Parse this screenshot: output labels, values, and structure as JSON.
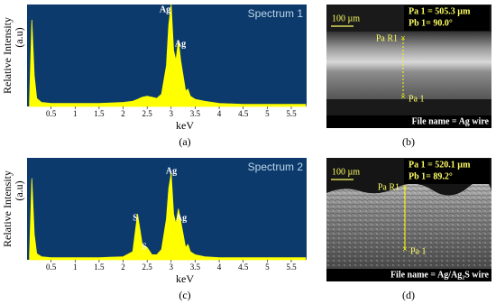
{
  "chart_data": [
    {
      "type": "area",
      "title": "Spectrum 1",
      "ylabel": "Relative Intensity",
      "ylabel_unit": "(a.u)",
      "xlabel": "keV",
      "caption": "(a)",
      "x": [
        0.05,
        0.1,
        0.15,
        0.2,
        0.3,
        0.5,
        1,
        1.5,
        2,
        2.2,
        2.3,
        2.4,
        2.5,
        2.6,
        2.7,
        2.8,
        2.9,
        2.95,
        3.0,
        3.05,
        3.1,
        3.15,
        3.2,
        3.3,
        3.35,
        3.4,
        3.5,
        3.7,
        4,
        4.5,
        5,
        5.5,
        5.8
      ],
      "series": [
        {
          "color": "#ffff00",
          "values": [
            5,
            85,
            30,
            8,
            4,
            3,
            3,
            3,
            4,
            5,
            7,
            9,
            10,
            9,
            8,
            12,
            40,
            80,
            100,
            55,
            45,
            65,
            45,
            15,
            17,
            10,
            7,
            5,
            3,
            2,
            2,
            2,
            2
          ]
        }
      ],
      "xlim": [
        0,
        5.82
      ],
      "ylim": [
        0,
        100
      ],
      "xticks": [
        0.5,
        1,
        1.5,
        2,
        2.5,
        3,
        3.5,
        4,
        4.5,
        5,
        5.5
      ],
      "background": "#0d3a6c",
      "annotations": [
        "Ag",
        "Ag"
      ]
    },
    {
      "type": "area",
      "title": "Spectrum 2",
      "ylabel": "Relative Intensity",
      "ylabel_unit": "(a.u)",
      "xlabel": "keV",
      "caption": "(c)",
      "x": [
        0.05,
        0.1,
        0.15,
        0.2,
        0.3,
        0.5,
        1,
        1.5,
        2,
        2.2,
        2.3,
        2.4,
        2.5,
        2.6,
        2.7,
        2.8,
        2.9,
        2.95,
        3.0,
        3.05,
        3.1,
        3.15,
        3.2,
        3.3,
        3.35,
        3.4,
        3.5,
        3.7,
        4,
        4.5,
        5,
        5.5,
        5.8
      ],
      "series": [
        {
          "color": "#ffff00",
          "values": [
            5,
            80,
            25,
            6,
            3,
            2,
            2,
            2,
            3,
            8,
            45,
            15,
            12,
            5,
            5,
            10,
            40,
            70,
            85,
            45,
            35,
            50,
            38,
            12,
            15,
            8,
            5,
            3,
            2,
            2,
            2,
            2,
            2
          ]
        }
      ],
      "xlim": [
        0,
        5.82
      ],
      "ylim": [
        0,
        100
      ],
      "xticks": [
        0.5,
        1,
        1.5,
        2,
        2.5,
        3,
        3.5,
        4,
        4.5,
        5,
        5.5
      ],
      "background": "#0d3a6c",
      "annotations": [
        "S",
        "S",
        "Ag",
        "Ag"
      ]
    }
  ],
  "images": [
    {
      "scale": "100 µm",
      "measure": [
        "Pa 1 = 505.3 µm",
        "Pb 1= 90.0°"
      ],
      "marker_top": "Pa R1",
      "marker_bottom": "Pa 1",
      "file": "File name = Ag wire",
      "caption": "(b)"
    },
    {
      "scale": "100 µm",
      "measure": [
        "Pa 1 = 520.1 µm",
        "Pb 1= 89.2°"
      ],
      "marker_top": "Pa R1",
      "marker_bottom": "Pa 1",
      "file": "File name = Ag/Ag₂S wire",
      "caption": "(d)"
    }
  ]
}
